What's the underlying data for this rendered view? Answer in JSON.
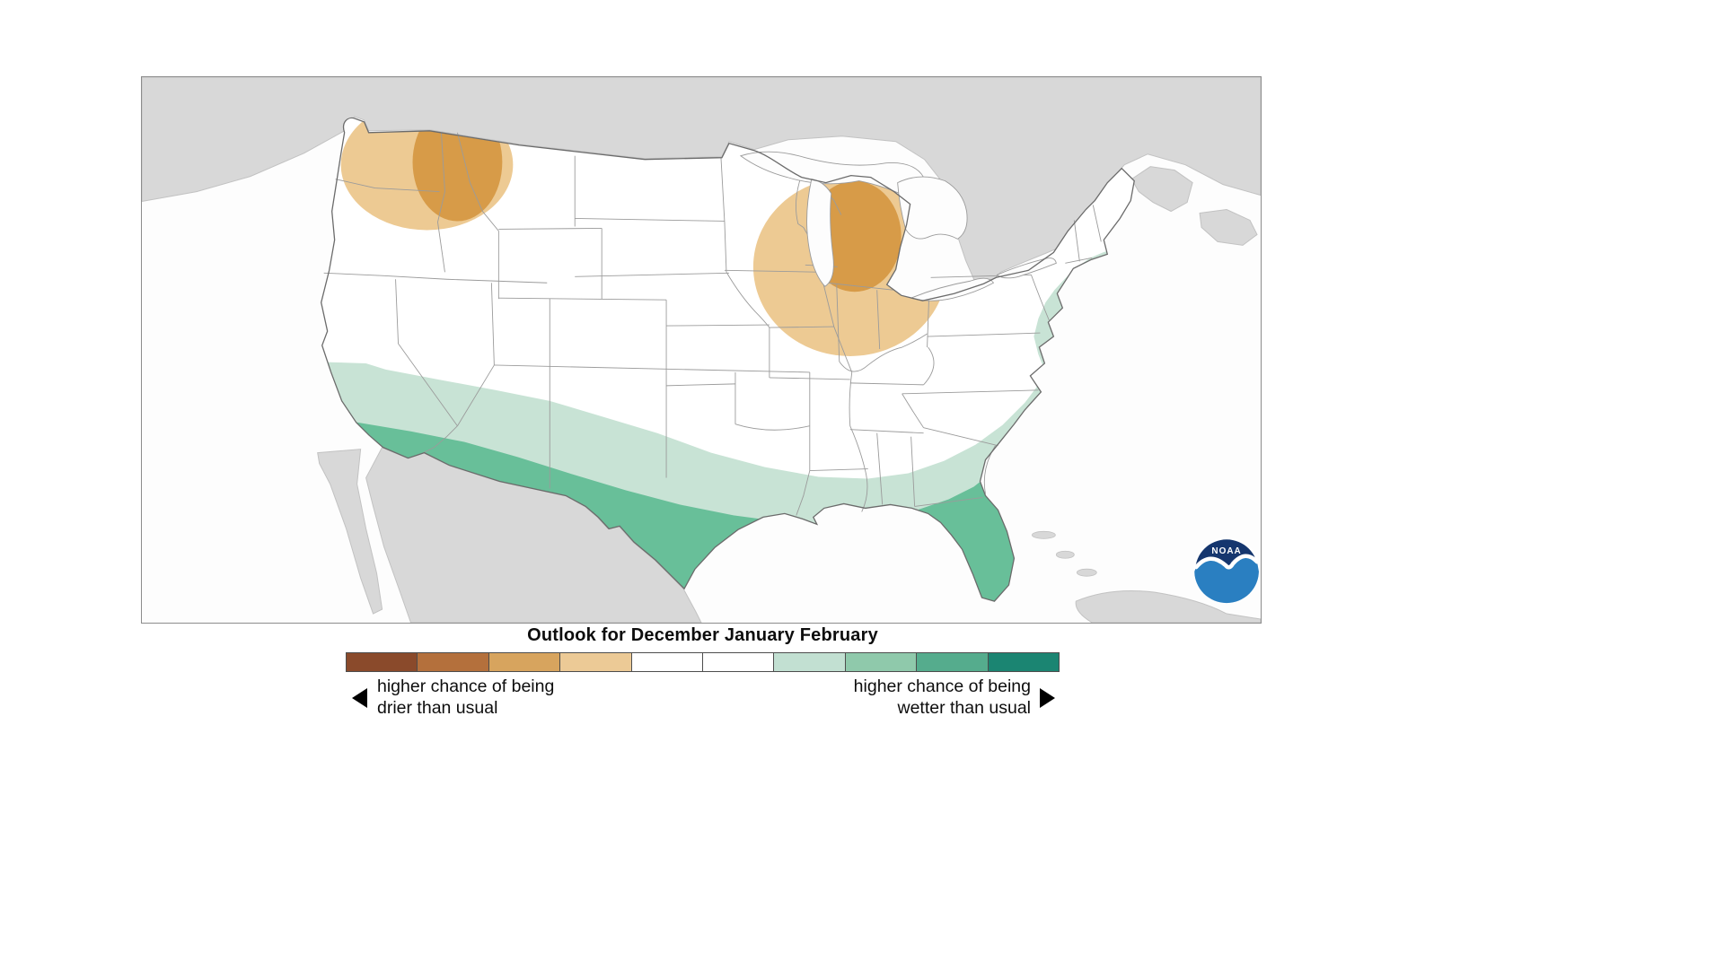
{
  "title": "Outlook for December January February",
  "legend": {
    "drier_line1": "higher chance of being",
    "drier_line2": "drier than usual",
    "wetter_line1": "higher chance of being",
    "wetter_line2": "wetter than usual",
    "colorbar_colors": [
      "#8a4a2b",
      "#b4703c",
      "#d7a45e",
      "#ecca96",
      "#ffffff",
      "#ffffff",
      "#c2e0d2",
      "#8fc9ab",
      "#55ac8d",
      "#1b8572"
    ]
  },
  "map": {
    "colors": {
      "us_land": "#ffffff",
      "foreign_land": "#d8d8d8",
      "foreign_stroke": "#c2c2c2",
      "water": "#fdfdfd",
      "state_border": "#9b9b9b",
      "us_outline": "#6b6b6b",
      "drier_light": "#edca93",
      "drier_dark": "#d79b48",
      "wetter_light": "#c8e3d5",
      "wetter_dark": "#68bf99"
    },
    "regions": [
      {
        "id": "pacific-northwest-drier-outer",
        "category": "drier",
        "shade": "light"
      },
      {
        "id": "pacific-northwest-drier-core",
        "category": "drier",
        "shade": "dark"
      },
      {
        "id": "great-lakes-drier-outer",
        "category": "drier",
        "shade": "light"
      },
      {
        "id": "great-lakes-drier-core",
        "category": "drier",
        "shade": "dark"
      },
      {
        "id": "southern-us-wetter-outer",
        "category": "wetter",
        "shade": "light"
      },
      {
        "id": "southern-us-wetter-core",
        "category": "wetter",
        "shade": "dark"
      }
    ]
  },
  "noaa": {
    "text": "NOAA",
    "navy": "#15366e",
    "blue": "#2a7fc1"
  }
}
